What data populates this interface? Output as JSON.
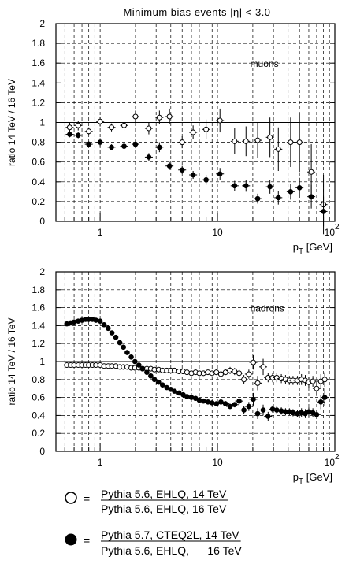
{
  "title": "Minimum bias events  |η| < 3.0",
  "chart_data": [
    {
      "type": "scatter",
      "panel": "top",
      "annotation": "muons",
      "ylabel": "ratio  14 TeV / 16 TeV",
      "xlabel": "p_T [GeV]",
      "xlabel_main": "p",
      "xlabel_sub": "T",
      "xlabel_unit": " [GeV]",
      "xscale": "log",
      "xlim": [
        0.42,
        100
      ],
      "ylim": [
        0,
        2
      ],
      "yticks": [
        "0",
        "0.2",
        "0.4",
        "0.6",
        "0.8",
        "1",
        "1.2",
        "1.4",
        "1.6",
        "1.8",
        "2"
      ],
      "xticks": [
        {
          "value": 1,
          "label": "1"
        },
        {
          "value": 10,
          "label": "10"
        },
        {
          "value": 100,
          "label": "10",
          "exp": "2"
        }
      ],
      "reference_line": 1,
      "grid": true,
      "series": [
        {
          "marker": "open-circle",
          "points": [
            [
              0.55,
              0.95,
              0.05
            ],
            [
              0.65,
              0.97,
              0.05
            ],
            [
              0.8,
              0.91,
              0.04
            ],
            [
              1.0,
              1.01,
              0.05
            ],
            [
              1.25,
              0.95,
              0.04
            ],
            [
              1.6,
              0.97,
              0.05
            ],
            [
              2.0,
              1.06,
              0.06
            ],
            [
              2.6,
              0.94,
              0.06
            ],
            [
              3.2,
              1.05,
              0.07
            ],
            [
              3.9,
              1.06,
              0.08
            ],
            [
              5.0,
              0.8,
              0.06
            ],
            [
              6.2,
              0.9,
              0.07
            ],
            [
              8.0,
              0.93,
              0.1
            ],
            [
              10.5,
              1.02,
              0.12
            ],
            [
              14.0,
              0.81,
              0.13
            ],
            [
              17.5,
              0.81,
              0.15
            ],
            [
              22.0,
              0.82,
              0.18
            ],
            [
              28.0,
              0.85,
              0.2
            ],
            [
              33.0,
              0.73,
              0.22
            ],
            [
              42.0,
              0.8,
              0.25
            ],
            [
              50.0,
              0.8,
              0.3
            ],
            [
              63.0,
              0.5,
              0.28
            ],
            [
              80.0,
              0.17,
              0.3
            ]
          ]
        },
        {
          "marker": "filled-circle",
          "points": [
            [
              0.55,
              0.88,
              0.03
            ],
            [
              0.65,
              0.87,
              0.03
            ],
            [
              0.8,
              0.78,
              0.03
            ],
            [
              1.0,
              0.8,
              0.04
            ],
            [
              1.25,
              0.75,
              0.03
            ],
            [
              1.6,
              0.76,
              0.04
            ],
            [
              2.0,
              0.78,
              0.04
            ],
            [
              2.6,
              0.65,
              0.04
            ],
            [
              3.2,
              0.75,
              0.05
            ],
            [
              3.9,
              0.56,
              0.04
            ],
            [
              5.0,
              0.52,
              0.04
            ],
            [
              6.2,
              0.47,
              0.04
            ],
            [
              8.0,
              0.42,
              0.05
            ],
            [
              10.5,
              0.48,
              0.06
            ],
            [
              14.0,
              0.36,
              0.05
            ],
            [
              17.5,
              0.36,
              0.06
            ],
            [
              22.0,
              0.23,
              0.05
            ],
            [
              28.0,
              0.35,
              0.07
            ],
            [
              33.0,
              0.24,
              0.07
            ],
            [
              42.0,
              0.3,
              0.08
            ],
            [
              50.0,
              0.34,
              0.1
            ],
            [
              63.0,
              0.25,
              0.12
            ],
            [
              80.0,
              0.1,
              0.15
            ]
          ]
        }
      ]
    },
    {
      "type": "scatter",
      "panel": "bottom",
      "annotation": "hadrons",
      "ylabel": "ratio  14 TeV / 16 TeV",
      "xlabel": "p_T [GeV]",
      "xlabel_main": "p",
      "xlabel_sub": "T",
      "xlabel_unit": " [GeV]",
      "xscale": "log",
      "xlim": [
        0.42,
        100
      ],
      "ylim": [
        0,
        2
      ],
      "yticks": [
        "0",
        "0.2",
        "0.4",
        "0.6",
        "0.8",
        "1",
        "1.2",
        "1.4",
        "1.6",
        "1.8",
        "2"
      ],
      "xticks": [
        {
          "value": 1,
          "label": "1"
        },
        {
          "value": 10,
          "label": "10"
        },
        {
          "value": 100,
          "label": "10",
          "exp": "2"
        }
      ],
      "reference_line": 1,
      "grid": true,
      "series": [
        {
          "marker": "open-circle",
          "points": [
            [
              0.52,
              0.96,
              0.0
            ],
            [
              0.56,
              0.96,
              0.0
            ],
            [
              0.6,
              0.96,
              0.0
            ],
            [
              0.65,
              0.96,
              0.0
            ],
            [
              0.7,
              0.96,
              0.0
            ],
            [
              0.75,
              0.96,
              0.0
            ],
            [
              0.8,
              0.96,
              0.0
            ],
            [
              0.86,
              0.96,
              0.0
            ],
            [
              0.92,
              0.96,
              0.0
            ],
            [
              1.0,
              0.96,
              0.0
            ],
            [
              1.08,
              0.95,
              0.0
            ],
            [
              1.17,
              0.95,
              0.0
            ],
            [
              1.26,
              0.95,
              0.0
            ],
            [
              1.36,
              0.95,
              0.0
            ],
            [
              1.47,
              0.94,
              0.0
            ],
            [
              1.58,
              0.94,
              0.0
            ],
            [
              1.7,
              0.94,
              0.0
            ],
            [
              1.84,
              0.93,
              0.0
            ],
            [
              1.98,
              0.93,
              0.0
            ],
            [
              2.14,
              0.93,
              0.0
            ],
            [
              2.3,
              0.92,
              0.0
            ],
            [
              2.5,
              0.92,
              0.0
            ],
            [
              2.7,
              0.92,
              0.0
            ],
            [
              2.9,
              0.91,
              0.0
            ],
            [
              3.15,
              0.91,
              0.0
            ],
            [
              3.4,
              0.9,
              0.0
            ],
            [
              3.7,
              0.9,
              0.0
            ],
            [
              4.0,
              0.9,
              0.0
            ],
            [
              4.3,
              0.9,
              0.0
            ],
            [
              4.7,
              0.89,
              0.0
            ],
            [
              5.1,
              0.89,
              0.0
            ],
            [
              5.5,
              0.88,
              0.0
            ],
            [
              6.0,
              0.87,
              0.0
            ],
            [
              6.5,
              0.88,
              0.0
            ],
            [
              7.0,
              0.87,
              0.0
            ],
            [
              7.6,
              0.87,
              0.0
            ],
            [
              8.3,
              0.88,
              0.02
            ],
            [
              9.0,
              0.87,
              0.02
            ],
            [
              9.8,
              0.88,
              0.03
            ],
            [
              10.7,
              0.86,
              0.03
            ],
            [
              11.7,
              0.88,
              0.03
            ],
            [
              12.8,
              0.9,
              0.04
            ],
            [
              14.0,
              0.89,
              0.04
            ],
            [
              15.3,
              0.87,
              0.04
            ],
            [
              16.8,
              0.8,
              0.05
            ],
            [
              18.5,
              0.86,
              0.05
            ],
            [
              20.2,
              0.99,
              0.08
            ],
            [
              22.0,
              0.76,
              0.08
            ],
            [
              24.5,
              0.94,
              0.09
            ],
            [
              27.0,
              0.82,
              0.05
            ],
            [
              29.5,
              0.82,
              0.05
            ],
            [
              32.0,
              0.82,
              0.05
            ],
            [
              35.0,
              0.81,
              0.05
            ],
            [
              38.0,
              0.8,
              0.05
            ],
            [
              41.0,
              0.79,
              0.05
            ],
            [
              44.0,
              0.79,
              0.05
            ],
            [
              48.0,
              0.79,
              0.05
            ],
            [
              52.0,
              0.8,
              0.06
            ],
            [
              56.0,
              0.79,
              0.06
            ],
            [
              60.0,
              0.77,
              0.06
            ],
            [
              65.0,
              0.78,
              0.06
            ],
            [
              70.0,
              0.7,
              0.07
            ],
            [
              76.0,
              0.78,
              0.08
            ],
            [
              82.0,
              0.8,
              0.08
            ]
          ]
        },
        {
          "marker": "filled-circle",
          "points": [
            [
              0.52,
              1.42,
              0.0
            ],
            [
              0.56,
              1.43,
              0.0
            ],
            [
              0.6,
              1.44,
              0.0
            ],
            [
              0.65,
              1.45,
              0.0
            ],
            [
              0.7,
              1.46,
              0.0
            ],
            [
              0.75,
              1.47,
              0.0
            ],
            [
              0.8,
              1.47,
              0.0
            ],
            [
              0.86,
              1.47,
              0.0
            ],
            [
              0.92,
              1.46,
              0.0
            ],
            [
              1.0,
              1.45,
              0.0
            ],
            [
              1.08,
              1.41,
              0.0
            ],
            [
              1.17,
              1.37,
              0.0
            ],
            [
              1.26,
              1.32,
              0.0
            ],
            [
              1.36,
              1.27,
              0.0
            ],
            [
              1.47,
              1.21,
              0.0
            ],
            [
              1.58,
              1.16,
              0.0
            ],
            [
              1.7,
              1.1,
              0.0
            ],
            [
              1.84,
              1.05,
              0.0
            ],
            [
              1.98,
              1.0,
              0.0
            ],
            [
              2.14,
              0.96,
              0.0
            ],
            [
              2.3,
              0.92,
              0.0
            ],
            [
              2.5,
              0.88,
              0.0
            ],
            [
              2.7,
              0.84,
              0.0
            ],
            [
              2.9,
              0.8,
              0.0
            ],
            [
              3.15,
              0.77,
              0.0
            ],
            [
              3.4,
              0.74,
              0.0
            ],
            [
              3.7,
              0.71,
              0.0
            ],
            [
              4.0,
              0.69,
              0.0
            ],
            [
              4.3,
              0.67,
              0.0
            ],
            [
              4.7,
              0.65,
              0.0
            ],
            [
              5.1,
              0.63,
              0.0
            ],
            [
              5.5,
              0.61,
              0.0
            ],
            [
              6.0,
              0.6,
              0.0
            ],
            [
              6.5,
              0.59,
              0.0
            ],
            [
              7.0,
              0.57,
              0.0
            ],
            [
              7.6,
              0.56,
              0.0
            ],
            [
              8.3,
              0.55,
              0.02
            ],
            [
              9.0,
              0.54,
              0.02
            ],
            [
              9.8,
              0.53,
              0.02
            ],
            [
              10.7,
              0.55,
              0.03
            ],
            [
              11.7,
              0.53,
              0.03
            ],
            [
              12.8,
              0.5,
              0.03
            ],
            [
              14.0,
              0.52,
              0.03
            ],
            [
              15.3,
              0.56,
              0.04
            ],
            [
              16.8,
              0.46,
              0.04
            ],
            [
              18.5,
              0.5,
              0.05
            ],
            [
              20.2,
              0.58,
              0.07
            ],
            [
              22.0,
              0.42,
              0.06
            ],
            [
              24.5,
              0.46,
              0.06
            ],
            [
              27.0,
              0.39,
              0.05
            ],
            [
              29.5,
              0.47,
              0.04
            ],
            [
              32.0,
              0.46,
              0.04
            ],
            [
              35.0,
              0.45,
              0.04
            ],
            [
              38.0,
              0.44,
              0.04
            ],
            [
              41.0,
              0.44,
              0.04
            ],
            [
              44.0,
              0.43,
              0.04
            ],
            [
              48.0,
              0.42,
              0.04
            ],
            [
              52.0,
              0.43,
              0.05
            ],
            [
              56.0,
              0.42,
              0.05
            ],
            [
              60.0,
              0.44,
              0.05
            ],
            [
              65.0,
              0.43,
              0.05
            ],
            [
              70.0,
              0.41,
              0.05
            ],
            [
              76.0,
              0.55,
              0.08
            ],
            [
              82.0,
              0.6,
              0.1
            ]
          ]
        }
      ]
    }
  ],
  "legend": [
    {
      "marker": "open-circle",
      "equals": "=",
      "numerator": "Pythia 5.6, EHLQ, 14 TeV",
      "denominator": "Pythia 5.6, EHLQ, 16 TeV"
    },
    {
      "marker": "filled-circle",
      "equals": "=",
      "numerator": "Pythia 5.7, CTEQ2L, 14 TeV",
      "denominator": "Pythia 5.6, EHLQ,      16 TeV"
    }
  ]
}
